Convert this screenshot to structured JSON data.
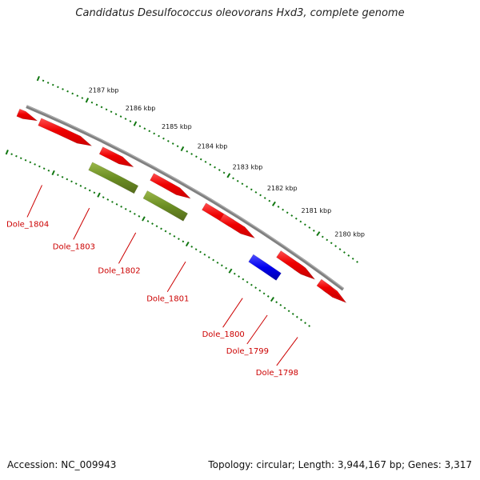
{
  "title": "Candidatus Desulfococcus oleovorans Hxd3, complete genome",
  "footer": {
    "accession": "Accession: NC_009943",
    "topology": "Topology: circular; Length: 3,944,167 bp; Genes: 3,317"
  },
  "colors": {
    "gene_default": "#ee0000",
    "gene_highlight_olive": "#6b8e23",
    "gene_highlight_blue": "#0000ee",
    "backbone": "#808080",
    "ticks": "#117711",
    "label": "#cc0000"
  },
  "scale_labels": [
    "2187 kbp",
    "2186 kbp",
    "2185 kbp",
    "2184 kbp",
    "2183 kbp",
    "2182 kbp",
    "2181 kbp",
    "2180 kbp"
  ],
  "genes": [
    {
      "name": "Dole_1804",
      "label": "Dole_1804",
      "color": "red"
    },
    {
      "name": "Dole_1803",
      "label": "Dole_1803",
      "color": "olive"
    },
    {
      "name": "Dole_1802",
      "label": "Dole_1802",
      "color": "olive"
    },
    {
      "name": "Dole_1801",
      "label": "Dole_1801",
      "color": "red"
    },
    {
      "name": "Dole_1800",
      "label": "Dole_1800",
      "color": "blue"
    },
    {
      "name": "Dole_1799",
      "label": "Dole_1799",
      "color": "red"
    },
    {
      "name": "Dole_1798",
      "label": "Dole_1798",
      "color": "red"
    }
  ]
}
